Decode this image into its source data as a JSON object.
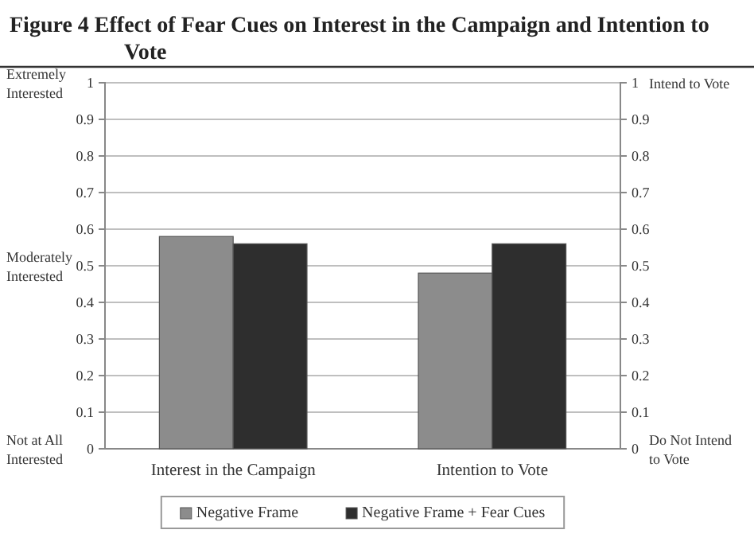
{
  "chart_data": {
    "type": "bar",
    "title": "Figure 4 Effect of Fear Cues on Interest in the Campaign and Intention to Vote",
    "categories": [
      "Interest in the Campaign",
      "Intention to Vote"
    ],
    "series": [
      {
        "name": "Negative Frame",
        "color": "#8c8c8c",
        "values": [
          0.58,
          0.48
        ]
      },
      {
        "name": "Negative Frame + Fear Cues",
        "color": "#2e2e2e",
        "values": [
          0.56,
          0.56
        ]
      }
    ],
    "ylim": [
      0,
      1
    ],
    "yticks": [
      0,
      0.1,
      0.2,
      0.3,
      0.4,
      0.5,
      0.6,
      0.7,
      0.8,
      0.9,
      1
    ],
    "y2lim": [
      0,
      1
    ],
    "y2ticks": [
      0,
      0.1,
      0.2,
      0.3,
      0.4,
      0.5,
      0.6,
      0.7,
      0.8,
      0.9,
      1
    ],
    "annotations": [
      "Extremely Interested",
      "Moderately Interested",
      "Not at All Interested",
      "Intend to Vote",
      "Do Not Intend to Vote"
    ],
    "grid": "y",
    "legend": "bottom"
  }
}
